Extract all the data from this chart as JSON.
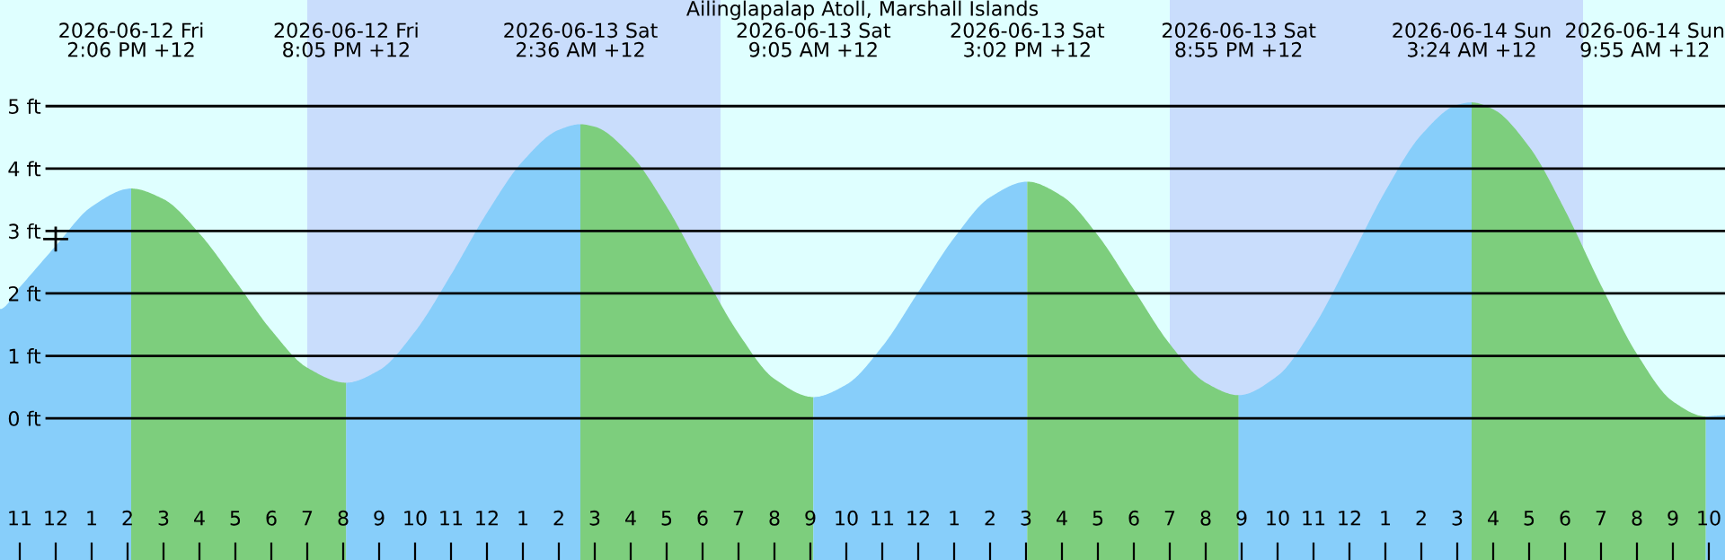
{
  "chart_data": {
    "type": "area",
    "title": "Ailinglapalap Atoll, Marshall Islands",
    "series": [
      {
        "color": "#87cefa",
        "x": [
          "2026-06-12T10:27",
          "2026-06-12T11:00",
          "2026-06-12T12:00",
          "2026-06-12T13:00",
          "2026-06-12T14:06"
        ],
        "values": [
          1.75,
          2.1,
          2.76,
          3.39,
          3.68
        ]
      },
      {
        "color": "#7dce7d",
        "x": [
          "2026-06-12T14:06",
          "2026-06-12T15:00",
          "2026-06-12T16:00",
          "2026-06-12T17:00",
          "2026-06-12T18:00",
          "2026-06-12T19:00",
          "2026-06-12T20:05"
        ],
        "values": [
          3.68,
          3.51,
          2.96,
          2.2,
          1.41,
          0.81,
          0.57
        ]
      },
      {
        "color": "#87cefa",
        "x": [
          "2026-06-12T20:05",
          "2026-06-12T21:00",
          "2026-06-12T22:00",
          "2026-06-12T23:00",
          "2026-06-13T00:00",
          "2026-06-13T01:00",
          "2026-06-13T02:00",
          "2026-06-13T02:36"
        ],
        "values": [
          0.57,
          0.77,
          1.39,
          2.3,
          3.29,
          4.12,
          4.62,
          4.71
        ]
      },
      {
        "color": "#7dce7d",
        "x": [
          "2026-06-13T02:36",
          "2026-06-13T03:00",
          "2026-06-13T04:00",
          "2026-06-13T05:00",
          "2026-06-13T06:00",
          "2026-06-13T07:00",
          "2026-06-13T08:00",
          "2026-06-13T09:05"
        ],
        "values": [
          4.71,
          4.67,
          4.22,
          3.39,
          2.35,
          1.36,
          0.63,
          0.34
        ]
      },
      {
        "color": "#87cefa",
        "x": [
          "2026-06-13T09:05",
          "2026-06-13T10:00",
          "2026-06-13T11:00",
          "2026-06-13T12:00",
          "2026-06-13T13:00",
          "2026-06-13T14:00",
          "2026-06-13T15:02"
        ],
        "values": [
          0.34,
          0.54,
          1.15,
          2.02,
          2.89,
          3.54,
          3.79
        ]
      },
      {
        "color": "#7dce7d",
        "x": [
          "2026-06-13T15:02",
          "2026-06-13T16:00",
          "2026-06-13T17:00",
          "2026-06-13T18:00",
          "2026-06-13T19:00",
          "2026-06-13T20:00",
          "2026-06-13T20:55"
        ],
        "values": [
          3.79,
          3.56,
          2.93,
          2.06,
          1.19,
          0.57,
          0.37
        ]
      },
      {
        "color": "#87cefa",
        "x": [
          "2026-06-13T20:55",
          "2026-06-13T22:00",
          "2026-06-13T23:00",
          "2026-06-14T00:00",
          "2026-06-14T01:00",
          "2026-06-14T02:00",
          "2026-06-14T03:00",
          "2026-06-14T03:24"
        ],
        "values": [
          0.37,
          0.68,
          1.46,
          2.53,
          3.64,
          4.54,
          5.02,
          5.06
        ]
      },
      {
        "color": "#7dce7d",
        "x": [
          "2026-06-14T03:24",
          "2026-06-14T04:00",
          "2026-06-14T05:00",
          "2026-06-14T06:00",
          "2026-06-14T07:00",
          "2026-06-14T08:00",
          "2026-06-14T09:00",
          "2026-06-14T09:55"
        ],
        "values": [
          5.06,
          4.95,
          4.35,
          3.33,
          2.13,
          1.03,
          0.27,
          0.03
        ]
      },
      {
        "color": "#87cefa",
        "x": [
          "2026-06-14T09:55",
          "2026-06-14T10:10",
          "2026-06-14T10:27"
        ],
        "values": [
          0.03,
          0.04,
          0.05
        ]
      },
      {
        "type": "scatter",
        "marker": "cross",
        "color": "#000000",
        "x": [
          "2026-06-12T12:00"
        ],
        "values": [
          2.87
        ]
      }
    ],
    "bands": [
      {
        "axis": "x",
        "from": "2026-06-12T19:00",
        "to": "2026-06-13T06:30",
        "color": "#c9ddfc"
      },
      {
        "axis": "x",
        "from": "2026-06-13T19:00",
        "to": "2026-06-14T06:30",
        "color": "#c9ddfc"
      }
    ],
    "annotations": [
      "2026-06-12 Fri\n2:06 PM +12",
      "2026-06-12 Fri\n8:05 PM +12",
      "2026-06-13 Sat\n2:36 AM +12",
      "2026-06-13 Sat\n9:05 AM +12",
      "2026-06-13 Sat\n3:02 PM +12",
      "2026-06-13 Sat\n8:55 PM +12",
      "2026-06-14 Sun\n3:24 AM +12",
      "2026-06-14 Sun\n9:55 AM +12"
    ],
    "xlim": [
      "2026-06-12T10:27",
      "2026-06-14T10:27"
    ],
    "xticks": [
      {
        "value": "2026-06-12T11:00",
        "label": "11"
      },
      {
        "value": "2026-06-12T12:00",
        "label": "12"
      },
      {
        "value": "2026-06-12T13:00",
        "label": "1"
      },
      {
        "value": "2026-06-12T14:00",
        "label": "2"
      },
      {
        "value": "2026-06-12T15:00",
        "label": "3"
      },
      {
        "value": "2026-06-12T16:00",
        "label": "4"
      },
      {
        "value": "2026-06-12T17:00",
        "label": "5"
      },
      {
        "value": "2026-06-12T18:00",
        "label": "6"
      },
      {
        "value": "2026-06-12T19:00",
        "label": "7"
      },
      {
        "value": "2026-06-12T20:00",
        "label": "8"
      },
      {
        "value": "2026-06-12T21:00",
        "label": "9"
      },
      {
        "value": "2026-06-12T22:00",
        "label": "10"
      },
      {
        "value": "2026-06-12T23:00",
        "label": "11"
      },
      {
        "value": "2026-06-13T00:00",
        "label": "12"
      },
      {
        "value": "2026-06-13T01:00",
        "label": "1"
      },
      {
        "value": "2026-06-13T02:00",
        "label": "2"
      },
      {
        "value": "2026-06-13T03:00",
        "label": "3"
      },
      {
        "value": "2026-06-13T04:00",
        "label": "4"
      },
      {
        "value": "2026-06-13T05:00",
        "label": "5"
      },
      {
        "value": "2026-06-13T06:00",
        "label": "6"
      },
      {
        "value": "2026-06-13T07:00",
        "label": "7"
      },
      {
        "value": "2026-06-13T08:00",
        "label": "8"
      },
      {
        "value": "2026-06-13T09:00",
        "label": "9"
      },
      {
        "value": "2026-06-13T10:00",
        "label": "10"
      },
      {
        "value": "2026-06-13T11:00",
        "label": "11"
      },
      {
        "value": "2026-06-13T12:00",
        "label": "12"
      },
      {
        "value": "2026-06-13T13:00",
        "label": "1"
      },
      {
        "value": "2026-06-13T14:00",
        "label": "2"
      },
      {
        "value": "2026-06-13T15:00",
        "label": "3"
      },
      {
        "value": "2026-06-13T16:00",
        "label": "4"
      },
      {
        "value": "2026-06-13T17:00",
        "label": "5"
      },
      {
        "value": "2026-06-13T18:00",
        "label": "6"
      },
      {
        "value": "2026-06-13T19:00",
        "label": "7"
      },
      {
        "value": "2026-06-13T20:00",
        "label": "8"
      },
      {
        "value": "2026-06-13T21:00",
        "label": "9"
      },
      {
        "value": "2026-06-13T22:00",
        "label": "10"
      },
      {
        "value": "2026-06-13T23:00",
        "label": "11"
      },
      {
        "value": "2026-06-14T00:00",
        "label": "12"
      },
      {
        "value": "2026-06-14T01:00",
        "label": "1"
      },
      {
        "value": "2026-06-14T02:00",
        "label": "2"
      },
      {
        "value": "2026-06-14T03:00",
        "label": "3"
      },
      {
        "value": "2026-06-14T04:00",
        "label": "4"
      },
      {
        "value": "2026-06-14T05:00",
        "label": "5"
      },
      {
        "value": "2026-06-14T06:00",
        "label": "6"
      },
      {
        "value": "2026-06-14T07:00",
        "label": "7"
      },
      {
        "value": "2026-06-14T08:00",
        "label": "8"
      },
      {
        "value": "2026-06-14T09:00",
        "label": "9"
      },
      {
        "value": "2026-06-14T10:00",
        "label": "10"
      }
    ],
    "ylim": [
      -2.27,
      6.7
    ],
    "yticks": [
      {
        "value": 0,
        "label": "0 ft"
      },
      {
        "value": 1,
        "label": "1 ft"
      },
      {
        "value": 2,
        "label": "2 ft"
      },
      {
        "value": 3,
        "label": "3 ft"
      },
      {
        "value": 4,
        "label": "4 ft"
      },
      {
        "value": 5,
        "label": "5 ft"
      }
    ],
    "grid": "y",
    "legend": false
  }
}
